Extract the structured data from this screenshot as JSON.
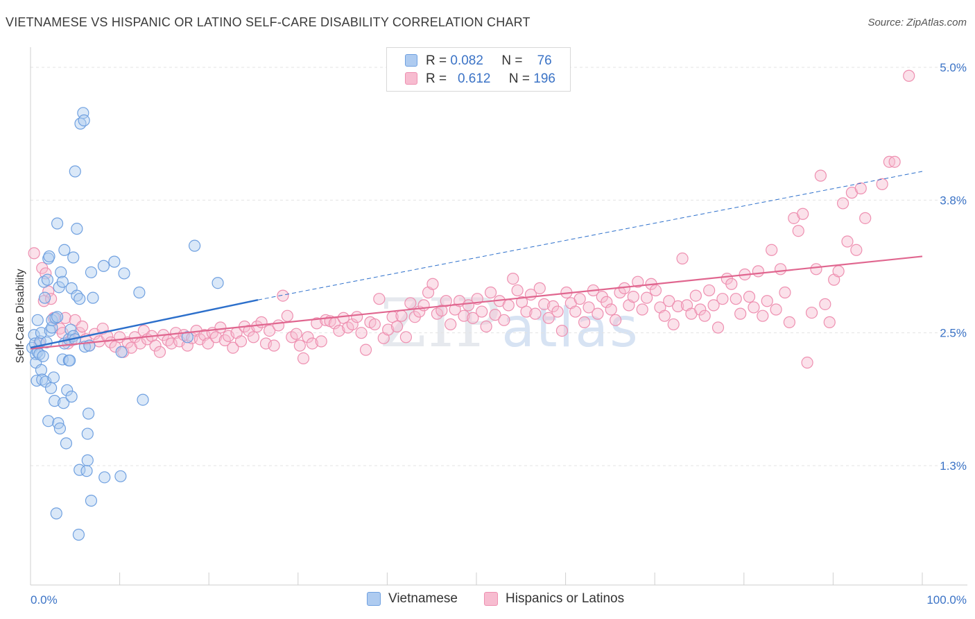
{
  "header": {
    "title": "VIETNAMESE VS HISPANIC OR LATINO SELF-CARE DISABILITY CORRELATION CHART",
    "source": "Source: ZipAtlas.com"
  },
  "watermark": {
    "zip": "ZIP",
    "atlas": "atlas"
  },
  "legend": {
    "rows": [
      {
        "r_label": "R =",
        "r_value": "0.082",
        "n_label": "N =",
        "n_value": "76",
        "color": "#aecbf0"
      },
      {
        "r_label": "R =",
        "r_value": "0.612",
        "n_label": "N =",
        "n_value": "196",
        "color": "#f7bcd0"
      }
    ]
  },
  "bottom_legend": [
    {
      "label": "Vietnamese",
      "color": "#aecbf0"
    },
    {
      "label": "Hispanics or Latinos",
      "color": "#f7bcd0"
    }
  ],
  "chart_data": {
    "type": "scatter",
    "title": "VIETNAMESE VS HISPANIC OR LATINO SELF-CARE DISABILITY CORRELATION CHART",
    "xlabel": "",
    "ylabel": "Self-Care Disability",
    "xlim": [
      0,
      100
    ],
    "ylim": [
      0,
      5.2
    ],
    "x_tick_labels": [
      "0.0%",
      "100.0%"
    ],
    "y_ticks": [
      {
        "value": 1.25,
        "label": "1.3%"
      },
      {
        "value": 2.5,
        "label": "2.5%"
      },
      {
        "value": 3.75,
        "label": "3.8%"
      },
      {
        "value": 5.0,
        "label": "5.0%"
      }
    ],
    "grid": true,
    "legend_position": "top-center",
    "colors": {
      "vietnamese": "#6fa0e0",
      "hispanic": "#ee8fb0",
      "vietnamese_line": "#2c6fcb",
      "hispanic_line": "#e0668f"
    },
    "series": [
      {
        "name": "Vietnamese",
        "r": 0.082,
        "n": 76,
        "trend": {
          "x": [
            0,
            25.5
          ],
          "y": [
            2.36,
            2.81
          ]
        },
        "points": [
          [
            0.2,
            2.36
          ],
          [
            0.4,
            2.48
          ],
          [
            0.5,
            2.4
          ],
          [
            0.6,
            2.3
          ],
          [
            0.6,
            2.22
          ],
          [
            0.7,
            2.05
          ],
          [
            0.8,
            2.62
          ],
          [
            0.8,
            2.32
          ],
          [
            1.0,
            2.3
          ],
          [
            1.1,
            2.42
          ],
          [
            1.2,
            2.15
          ],
          [
            1.2,
            2.5
          ],
          [
            1.3,
            2.06
          ],
          [
            1.4,
            2.28
          ],
          [
            1.5,
            2.98
          ],
          [
            1.6,
            2.83
          ],
          [
            1.7,
            2.04
          ],
          [
            1.8,
            2.41
          ],
          [
            1.9,
            3.0
          ],
          [
            2.0,
            1.67
          ],
          [
            2.0,
            3.2
          ],
          [
            2.1,
            3.22
          ],
          [
            2.2,
            2.52
          ],
          [
            2.3,
            1.98
          ],
          [
            2.4,
            2.55
          ],
          [
            2.4,
            2.62
          ],
          [
            2.6,
            2.08
          ],
          [
            2.7,
            1.86
          ],
          [
            2.8,
            2.64
          ],
          [
            2.9,
            0.8
          ],
          [
            3.0,
            2.65
          ],
          [
            3.0,
            3.53
          ],
          [
            3.1,
            1.65
          ],
          [
            3.2,
            2.93
          ],
          [
            3.3,
            1.6
          ],
          [
            3.4,
            3.07
          ],
          [
            3.6,
            2.25
          ],
          [
            3.6,
            2.98
          ],
          [
            3.7,
            1.84
          ],
          [
            3.8,
            3.28
          ],
          [
            3.8,
            2.4
          ],
          [
            4.0,
            1.46
          ],
          [
            4.1,
            1.96
          ],
          [
            4.3,
            2.44
          ],
          [
            4.3,
            2.24
          ],
          [
            4.4,
            2.24
          ],
          [
            4.5,
            2.53
          ],
          [
            4.6,
            2.92
          ],
          [
            4.6,
            1.9
          ],
          [
            4.8,
            3.21
          ],
          [
            4.8,
            2.47
          ],
          [
            5.0,
            4.02
          ],
          [
            5.0,
            2.44
          ],
          [
            5.2,
            2.85
          ],
          [
            5.2,
            3.48
          ],
          [
            5.4,
            0.6
          ],
          [
            5.5,
            2.82
          ],
          [
            5.5,
            1.21
          ],
          [
            5.6,
            4.47
          ],
          [
            5.9,
            4.57
          ],
          [
            6.0,
            4.5
          ],
          [
            6.1,
            2.37
          ],
          [
            6.3,
            1.2
          ],
          [
            6.4,
            1.3
          ],
          [
            6.4,
            1.55
          ],
          [
            6.5,
            1.74
          ],
          [
            6.6,
            2.38
          ],
          [
            6.8,
            0.92
          ],
          [
            6.8,
            3.07
          ],
          [
            7.0,
            2.83
          ],
          [
            8.2,
            3.13
          ],
          [
            8.3,
            1.14
          ],
          [
            9.4,
            3.17
          ],
          [
            10.1,
            1.15
          ],
          [
            10.2,
            2.32
          ],
          [
            10.5,
            3.06
          ]
        ],
        "extra_points": [
          [
            12.2,
            2.88
          ],
          [
            12.6,
            1.87
          ],
          [
            17.6,
            2.46
          ],
          [
            18.4,
            3.32
          ],
          [
            21.0,
            2.97
          ]
        ]
      },
      {
        "name": "Hispanics or Latinos",
        "r": 0.612,
        "n": 196,
        "trend": {
          "x": [
            0,
            100
          ],
          "y": [
            2.35,
            3.22
          ]
        },
        "trend_dashed": {
          "x": [
            25.5,
            100
          ],
          "y": [
            2.81,
            4.02
          ]
        },
        "points": [
          [
            0.4,
            3.25
          ],
          [
            1.0,
            2.4
          ],
          [
            1.3,
            3.11
          ],
          [
            1.5,
            2.8
          ],
          [
            1.7,
            3.06
          ],
          [
            2.0,
            2.89
          ],
          [
            2.3,
            2.82
          ],
          [
            2.6,
            2.64
          ],
          [
            3.3,
            2.54
          ],
          [
            3.6,
            2.5
          ],
          [
            3.9,
            2.64
          ],
          [
            4.2,
            2.4
          ],
          [
            4.6,
            2.43
          ],
          [
            5.0,
            2.62
          ],
          [
            5.5,
            2.5
          ],
          [
            5.8,
            2.56
          ],
          [
            6.2,
            2.44
          ],
          [
            6.6,
            2.38
          ],
          [
            7.2,
            2.49
          ],
          [
            7.7,
            2.42
          ],
          [
            8.1,
            2.54
          ],
          [
            8.6,
            2.47
          ],
          [
            9.0,
            2.41
          ],
          [
            9.5,
            2.37
          ],
          [
            10.0,
            2.46
          ],
          [
            10.4,
            2.32
          ],
          [
            10.9,
            2.41
          ],
          [
            11.3,
            2.36
          ],
          [
            11.7,
            2.46
          ],
          [
            12.3,
            2.4
          ],
          [
            12.7,
            2.52
          ],
          [
            13.1,
            2.44
          ],
          [
            13.6,
            2.47
          ],
          [
            14.0,
            2.38
          ],
          [
            14.5,
            2.32
          ],
          [
            14.9,
            2.48
          ],
          [
            15.4,
            2.43
          ],
          [
            15.8,
            2.4
          ],
          [
            16.3,
            2.5
          ],
          [
            16.7,
            2.42
          ],
          [
            17.2,
            2.48
          ],
          [
            17.6,
            2.38
          ],
          [
            18.1,
            2.45
          ],
          [
            18.6,
            2.52
          ],
          [
            19.0,
            2.44
          ],
          [
            19.5,
            2.48
          ],
          [
            19.9,
            2.4
          ],
          [
            20.4,
            2.5
          ],
          [
            20.8,
            2.46
          ],
          [
            21.3,
            2.55
          ],
          [
            21.8,
            2.43
          ],
          [
            22.2,
            2.47
          ],
          [
            22.7,
            2.36
          ],
          [
            23.1,
            2.5
          ],
          [
            23.6,
            2.42
          ],
          [
            24.0,
            2.56
          ],
          [
            24.5,
            2.52
          ],
          [
            25.0,
            2.46
          ],
          [
            25.4,
            2.56
          ],
          [
            25.9,
            2.6
          ],
          [
            26.4,
            2.4
          ],
          [
            26.8,
            2.52
          ],
          [
            27.3,
            2.38
          ],
          [
            27.8,
            2.57
          ],
          [
            28.3,
            2.85
          ],
          [
            28.8,
            2.66
          ],
          [
            29.3,
            2.46
          ],
          [
            29.8,
            2.49
          ],
          [
            30.2,
            2.38
          ],
          [
            30.6,
            2.26
          ],
          [
            31.1,
            2.46
          ],
          [
            31.6,
            2.4
          ],
          [
            32.1,
            2.59
          ],
          [
            32.6,
            2.42
          ],
          [
            33.1,
            2.62
          ],
          [
            33.6,
            2.61
          ],
          [
            34.1,
            2.59
          ],
          [
            34.6,
            2.52
          ],
          [
            35.1,
            2.64
          ],
          [
            35.6,
            2.55
          ],
          [
            36.1,
            2.58
          ],
          [
            36.6,
            2.65
          ],
          [
            37.1,
            2.5
          ],
          [
            37.6,
            2.34
          ],
          [
            38.1,
            2.6
          ],
          [
            38.6,
            2.58
          ],
          [
            39.1,
            2.82
          ],
          [
            39.6,
            2.45
          ],
          [
            40.1,
            2.53
          ],
          [
            40.6,
            2.65
          ],
          [
            41.1,
            2.56
          ],
          [
            41.6,
            2.66
          ],
          [
            42.1,
            2.46
          ],
          [
            42.6,
            2.78
          ],
          [
            43.1,
            2.65
          ],
          [
            43.6,
            2.7
          ],
          [
            44.1,
            2.76
          ],
          [
            44.6,
            2.88
          ],
          [
            45.1,
            2.96
          ],
          [
            45.6,
            2.68
          ],
          [
            46.1,
            2.71
          ],
          [
            46.6,
            2.8
          ],
          [
            47.1,
            2.58
          ],
          [
            47.6,
            2.72
          ],
          [
            48.1,
            2.8
          ],
          [
            48.6,
            2.66
          ],
          [
            49.1,
            2.76
          ],
          [
            49.6,
            2.64
          ],
          [
            50.1,
            2.82
          ],
          [
            50.6,
            2.7
          ],
          [
            51.1,
            2.56
          ],
          [
            51.6,
            2.88
          ],
          [
            52.1,
            2.67
          ],
          [
            52.6,
            2.8
          ],
          [
            53.1,
            2.62
          ],
          [
            53.6,
            2.76
          ],
          [
            54.1,
            3.01
          ],
          [
            54.6,
            2.9
          ],
          [
            55.1,
            2.79
          ],
          [
            55.6,
            2.7
          ],
          [
            56.1,
            2.86
          ],
          [
            56.6,
            2.68
          ],
          [
            57.1,
            2.92
          ],
          [
            57.6,
            2.77
          ],
          [
            58.1,
            2.64
          ],
          [
            58.6,
            2.75
          ],
          [
            59.1,
            2.7
          ],
          [
            59.6,
            2.52
          ],
          [
            60.1,
            2.88
          ],
          [
            60.6,
            2.78
          ],
          [
            61.1,
            2.7
          ],
          [
            61.6,
            2.82
          ],
          [
            62.1,
            2.6
          ],
          [
            62.6,
            2.74
          ],
          [
            63.1,
            2.9
          ],
          [
            63.6,
            2.68
          ],
          [
            64.1,
            2.84
          ],
          [
            64.6,
            2.79
          ],
          [
            65.1,
            2.72
          ],
          [
            65.6,
            2.62
          ],
          [
            66.1,
            2.88
          ],
          [
            66.6,
            2.92
          ],
          [
            67.1,
            2.76
          ],
          [
            67.6,
            2.84
          ],
          [
            68.1,
            2.98
          ],
          [
            68.6,
            2.72
          ],
          [
            69.1,
            2.83
          ],
          [
            69.6,
            2.96
          ],
          [
            70.1,
            2.9
          ],
          [
            70.6,
            2.74
          ],
          [
            71.1,
            2.66
          ],
          [
            71.6,
            2.8
          ],
          [
            72.1,
            2.58
          ],
          [
            72.6,
            2.75
          ],
          [
            73.1,
            3.2
          ],
          [
            73.6,
            2.76
          ],
          [
            74.1,
            2.68
          ],
          [
            74.6,
            2.85
          ],
          [
            75.1,
            2.72
          ],
          [
            75.6,
            2.66
          ],
          [
            76.1,
            2.9
          ],
          [
            76.6,
            2.76
          ],
          [
            77.1,
            2.55
          ],
          [
            77.6,
            2.82
          ],
          [
            78.1,
            3.01
          ],
          [
            78.6,
            2.96
          ],
          [
            79.1,
            2.82
          ],
          [
            79.6,
            2.68
          ],
          [
            80.1,
            3.05
          ],
          [
            80.6,
            2.84
          ],
          [
            81.1,
            2.74
          ],
          [
            81.6,
            3.08
          ],
          [
            82.1,
            2.66
          ],
          [
            82.6,
            2.8
          ],
          [
            83.1,
            3.28
          ],
          [
            83.6,
            2.72
          ],
          [
            84.1,
            3.1
          ],
          [
            84.6,
            2.88
          ],
          [
            85.1,
            2.6
          ],
          [
            85.6,
            3.58
          ],
          [
            86.1,
            3.46
          ],
          [
            86.6,
            3.62
          ],
          [
            87.1,
            2.22
          ],
          [
            87.6,
            2.69
          ],
          [
            88.1,
            3.1
          ],
          [
            88.6,
            3.98
          ],
          [
            89.1,
            2.77
          ],
          [
            89.6,
            2.6
          ],
          [
            90.1,
            3.0
          ],
          [
            90.6,
            3.08
          ],
          [
            91.1,
            3.72
          ],
          [
            91.6,
            3.36
          ],
          [
            92.1,
            3.82
          ],
          [
            92.6,
            3.28
          ],
          [
            93.1,
            3.86
          ],
          [
            93.6,
            3.58
          ],
          [
            96.3,
            4.11
          ],
          [
            98.5,
            4.92
          ],
          [
            96.9,
            4.11
          ],
          [
            95.5,
            3.9
          ]
        ]
      }
    ]
  }
}
